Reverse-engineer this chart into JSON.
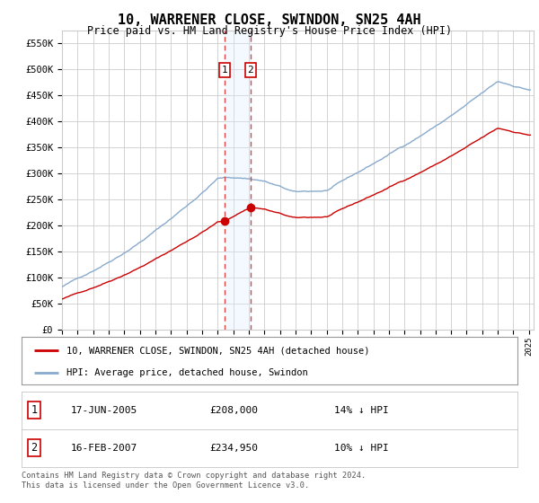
{
  "title": "10, WARRENER CLOSE, SWINDON, SN25 4AH",
  "subtitle": "Price paid vs. HM Land Registry's House Price Index (HPI)",
  "legend_line1": "10, WARRENER CLOSE, SWINDON, SN25 4AH (detached house)",
  "legend_line2": "HPI: Average price, detached house, Swindon",
  "footer": "Contains HM Land Registry data © Crown copyright and database right 2024.\nThis data is licensed under the Open Government Licence v3.0.",
  "sale1_date": "17-JUN-2005",
  "sale1_price": 208000,
  "sale1_pct": "14% ↓ HPI",
  "sale2_date": "16-FEB-2007",
  "sale2_price": 234950,
  "sale2_pct": "10% ↓ HPI",
  "ylim": [
    0,
    575000
  ],
  "yticks": [
    0,
    50000,
    100000,
    150000,
    200000,
    250000,
    300000,
    350000,
    400000,
    450000,
    500000,
    550000
  ],
  "ytick_labels": [
    "£0",
    "£50K",
    "£100K",
    "£150K",
    "£200K",
    "£250K",
    "£300K",
    "£350K",
    "£400K",
    "£450K",
    "£500K",
    "£550K"
  ],
  "line_color_red": "#cc0000",
  "line_color_blue": "#88aacc",
  "marker_fill": "#cc0000",
  "vline_color": "#dd4444",
  "shade_color": "#ddeeff",
  "bg_color": "#ffffff",
  "grid_color": "#cccccc",
  "sale1_x": 2005.46,
  "sale2_x": 2007.12
}
